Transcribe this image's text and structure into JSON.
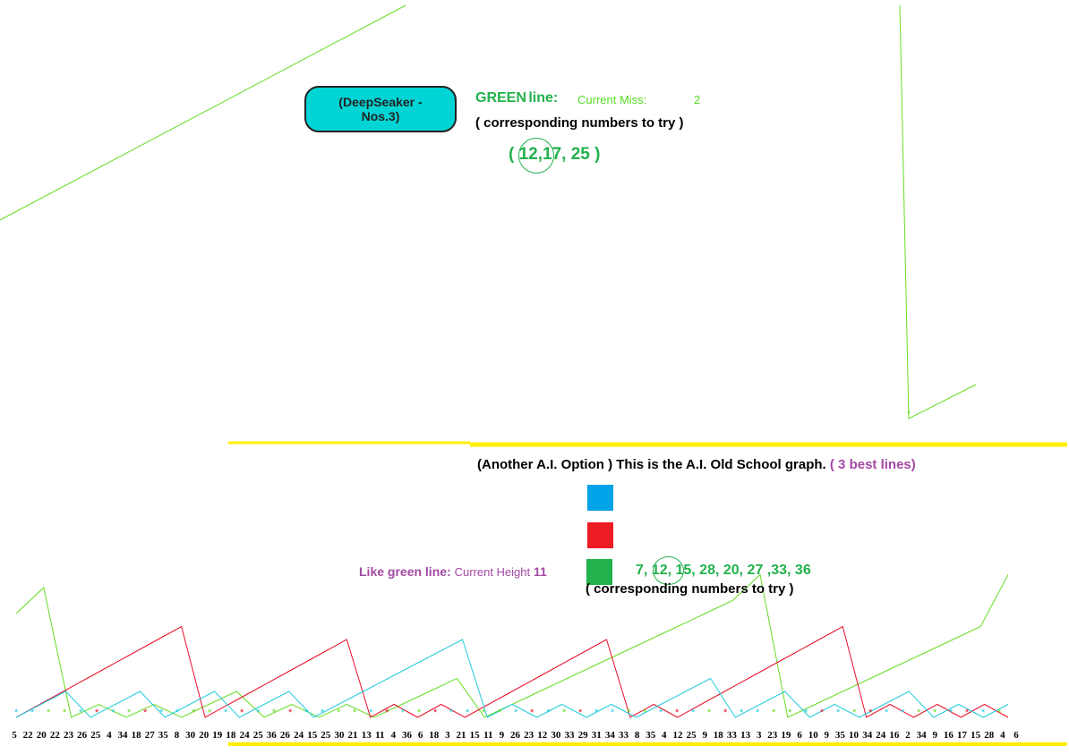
{
  "top_panel": {
    "label_button": "(DeepSeaker - Nos.3)",
    "green_line_title": "GREEN",
    "green_line_word": "line:",
    "current_miss_label": "Current Miss:",
    "current_miss_value": "2",
    "corresponding_text": "( corresponding numbers to try )",
    "numbers_to_try": [
      "12,",
      "17,",
      "25"
    ],
    "numbers_open": "(",
    "numbers_close": ")",
    "circled_number": "12"
  },
  "bottom_panel": {
    "heading_black": "(Another A.I. Option )  This is the A.I. Old School graph.",
    "heading_purple": "( 3 best lines)",
    "like_green_label": "Like green line:",
    "current_height_label": "Current Height",
    "current_height_value": "11",
    "numbers_to_try": "7, 12, 15, 28, 20, 27 ,33, 36",
    "corresponding_text": "( corresponding numbers to try )",
    "circled_number": "12",
    "legend_colors": [
      "#00a2e8",
      "#ed1c24",
      "#22b14c"
    ]
  },
  "colors": {
    "green_line": "#66dd22",
    "red_line": "#e8102a",
    "cyan_line": "#22ccdd",
    "yellow_rule": "#ffee00",
    "pill": "#00d4d4"
  },
  "chart_data": [
    {
      "type": "line",
      "series": [
        {
          "color": "#66dd22",
          "values": [
            0,
            1,
            2,
            3,
            4,
            5,
            6,
            7,
            8,
            9,
            10,
            11,
            12,
            13,
            14,
            15,
            16,
            17,
            18,
            19,
            20,
            0,
            1,
            2
          ]
        }
      ]
    },
    {
      "type": "line",
      "x_tick_labels": [
        "5",
        "22",
        "20",
        "22",
        "23",
        "26",
        "25",
        "4",
        "34",
        "18",
        "27",
        "35",
        "8",
        "30",
        "20",
        "19",
        "18",
        "24",
        "25",
        "36",
        "26",
        "24",
        "15",
        "25",
        "30",
        "21",
        "13",
        "11",
        "4",
        "36",
        "6",
        "18",
        "3",
        "21",
        "15",
        "11",
        "9",
        "26",
        "23",
        "12",
        "30",
        "33",
        "29",
        "31",
        "34",
        "33",
        "8",
        "35",
        "4",
        "12",
        "25",
        "9",
        "18",
        "33",
        "13",
        "3",
        "23",
        "19",
        "6",
        "10",
        "9",
        "35",
        "10",
        "34",
        "24",
        "16",
        "2",
        "34",
        "9",
        "16",
        "17",
        "15",
        "28",
        "4",
        "6"
      ],
      "series": [
        {
          "color": "#66dd22",
          "values": [
            8,
            10,
            0,
            1,
            0,
            1,
            0,
            1,
            2,
            0,
            1,
            0,
            1,
            0,
            1,
            2,
            3,
            0,
            1,
            2,
            3,
            4,
            5,
            6,
            7,
            8,
            9,
            11,
            0,
            1,
            2,
            3,
            4,
            5,
            6,
            7,
            11
          ]
        },
        {
          "color": "#e8102a",
          "values": [
            0,
            1,
            2,
            3,
            4,
            5,
            6,
            7,
            0,
            1,
            2,
            3,
            4,
            5,
            6,
            0,
            1,
            0,
            1,
            0,
            1,
            2,
            3,
            4,
            5,
            6,
            0,
            1,
            0,
            1,
            2,
            3,
            4,
            5,
            6,
            7,
            0,
            1,
            0,
            1,
            0,
            1,
            0
          ]
        },
        {
          "color": "#22ccdd",
          "values": [
            0,
            1,
            2,
            0,
            1,
            2,
            0,
            1,
            2,
            0,
            1,
            2,
            0,
            1,
            2,
            3,
            4,
            5,
            6,
            0,
            1,
            0,
            1,
            0,
            1,
            0,
            1,
            2,
            3,
            0,
            1,
            2,
            0,
            1,
            0,
            1,
            2,
            0,
            1,
            0,
            1
          ]
        }
      ]
    }
  ]
}
